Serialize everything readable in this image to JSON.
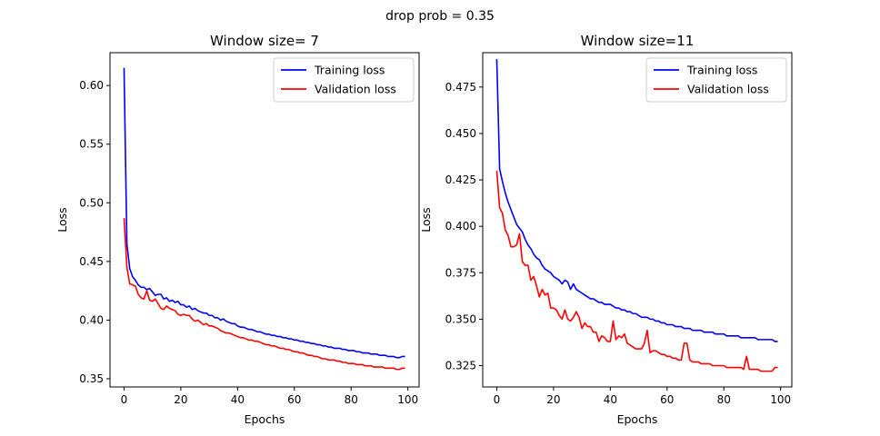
{
  "figure": {
    "suptitle": "drop prob = 0.35"
  },
  "chart_data": [
    {
      "type": "line",
      "title": "Window size= 7",
      "xlabel": "Epochs",
      "ylabel": "Loss",
      "xlim": [
        -4.95,
        103.95
      ],
      "ylim": [
        0.343,
        0.628
      ],
      "xticks": [
        0,
        20,
        40,
        60,
        80,
        100
      ],
      "yticks": [
        0.35,
        0.4,
        0.45,
        0.5,
        0.55,
        0.6
      ],
      "ytick_labels": [
        "0.35",
        "0.40",
        "0.45",
        "0.50",
        "0.55",
        "0.60"
      ],
      "legend_position": "top-right",
      "grid": false,
      "series": [
        {
          "name": "Training loss",
          "color": "#0000ff",
          "values": [
            0.615,
            0.465,
            0.444,
            0.437,
            0.434,
            0.43,
            0.428,
            0.428,
            0.426,
            0.427,
            0.424,
            0.421,
            0.422,
            0.422,
            0.418,
            0.419,
            0.416,
            0.417,
            0.415,
            0.416,
            0.413,
            0.413,
            0.411,
            0.412,
            0.409,
            0.41,
            0.408,
            0.407,
            0.406,
            0.406,
            0.404,
            0.404,
            0.402,
            0.402,
            0.4,
            0.401,
            0.399,
            0.398,
            0.397,
            0.397,
            0.395,
            0.394,
            0.394,
            0.393,
            0.392,
            0.392,
            0.391,
            0.39,
            0.39,
            0.389,
            0.388,
            0.388,
            0.387,
            0.387,
            0.386,
            0.386,
            0.385,
            0.385,
            0.384,
            0.384,
            0.383,
            0.383,
            0.382,
            0.382,
            0.381,
            0.381,
            0.38,
            0.38,
            0.379,
            0.379,
            0.378,
            0.378,
            0.377,
            0.377,
            0.376,
            0.376,
            0.376,
            0.375,
            0.375,
            0.374,
            0.374,
            0.374,
            0.373,
            0.373,
            0.372,
            0.372,
            0.372,
            0.371,
            0.371,
            0.371,
            0.37,
            0.37,
            0.37,
            0.369,
            0.369,
            0.369,
            0.368,
            0.368,
            0.369,
            0.369
          ]
        },
        {
          "name": "Validation loss",
          "color": "#ff0000",
          "values": [
            0.487,
            0.445,
            0.431,
            0.43,
            0.429,
            0.422,
            0.419,
            0.418,
            0.425,
            0.417,
            0.416,
            0.418,
            0.414,
            0.41,
            0.409,
            0.412,
            0.41,
            0.409,
            0.408,
            0.405,
            0.404,
            0.405,
            0.404,
            0.404,
            0.401,
            0.399,
            0.4,
            0.398,
            0.396,
            0.397,
            0.395,
            0.395,
            0.394,
            0.393,
            0.391,
            0.39,
            0.389,
            0.389,
            0.388,
            0.387,
            0.386,
            0.385,
            0.385,
            0.384,
            0.383,
            0.383,
            0.382,
            0.382,
            0.381,
            0.38,
            0.379,
            0.379,
            0.378,
            0.378,
            0.377,
            0.376,
            0.376,
            0.375,
            0.375,
            0.374,
            0.373,
            0.373,
            0.372,
            0.372,
            0.371,
            0.37,
            0.37,
            0.369,
            0.369,
            0.368,
            0.367,
            0.367,
            0.366,
            0.366,
            0.366,
            0.365,
            0.365,
            0.364,
            0.364,
            0.363,
            0.363,
            0.363,
            0.362,
            0.362,
            0.362,
            0.361,
            0.361,
            0.361,
            0.36,
            0.36,
            0.36,
            0.36,
            0.359,
            0.359,
            0.359,
            0.359,
            0.358,
            0.358,
            0.359,
            0.359
          ]
        }
      ]
    },
    {
      "type": "line",
      "title": "Window size=11",
      "xlabel": "Epochs",
      "ylabel": "Loss",
      "xlim": [
        -4.95,
        103.95
      ],
      "ylim": [
        0.3135,
        0.4935
      ],
      "xticks": [
        0,
        20,
        40,
        60,
        80,
        100
      ],
      "yticks": [
        0.325,
        0.35,
        0.375,
        0.4,
        0.425,
        0.45,
        0.475
      ],
      "ytick_labels": [
        "0.325",
        "0.350",
        "0.375",
        "0.400",
        "0.425",
        "0.450",
        "0.475"
      ],
      "legend_position": "top-right",
      "grid": false,
      "series": [
        {
          "name": "Training loss",
          "color": "#0000ff",
          "values": [
            0.49,
            0.431,
            0.424,
            0.418,
            0.413,
            0.409,
            0.405,
            0.401,
            0.399,
            0.397,
            0.393,
            0.39,
            0.388,
            0.385,
            0.383,
            0.382,
            0.379,
            0.377,
            0.376,
            0.375,
            0.373,
            0.372,
            0.371,
            0.369,
            0.371,
            0.37,
            0.366,
            0.369,
            0.366,
            0.365,
            0.364,
            0.363,
            0.362,
            0.361,
            0.361,
            0.36,
            0.359,
            0.359,
            0.358,
            0.358,
            0.358,
            0.357,
            0.356,
            0.356,
            0.355,
            0.355,
            0.354,
            0.354,
            0.353,
            0.353,
            0.352,
            0.351,
            0.351,
            0.351,
            0.35,
            0.35,
            0.349,
            0.349,
            0.348,
            0.348,
            0.347,
            0.347,
            0.347,
            0.346,
            0.346,
            0.346,
            0.345,
            0.345,
            0.345,
            0.344,
            0.344,
            0.344,
            0.344,
            0.343,
            0.343,
            0.343,
            0.343,
            0.342,
            0.342,
            0.342,
            0.342,
            0.341,
            0.341,
            0.341,
            0.341,
            0.341,
            0.34,
            0.34,
            0.34,
            0.34,
            0.34,
            0.34,
            0.339,
            0.339,
            0.339,
            0.339,
            0.339,
            0.339,
            0.338,
            0.338
          ]
        },
        {
          "name": "Validation loss",
          "color": "#ff0000",
          "values": [
            0.43,
            0.41,
            0.407,
            0.398,
            0.395,
            0.389,
            0.389,
            0.39,
            0.396,
            0.381,
            0.379,
            0.379,
            0.371,
            0.373,
            0.368,
            0.362,
            0.366,
            0.363,
            0.364,
            0.356,
            0.356,
            0.355,
            0.352,
            0.35,
            0.355,
            0.35,
            0.349,
            0.351,
            0.354,
            0.351,
            0.345,
            0.348,
            0.346,
            0.346,
            0.343,
            0.343,
            0.338,
            0.341,
            0.34,
            0.338,
            0.338,
            0.349,
            0.339,
            0.341,
            0.34,
            0.342,
            0.337,
            0.336,
            0.335,
            0.334,
            0.334,
            0.334,
            0.337,
            0.344,
            0.332,
            0.333,
            0.333,
            0.332,
            0.331,
            0.331,
            0.33,
            0.33,
            0.329,
            0.329,
            0.328,
            0.328,
            0.337,
            0.337,
            0.328,
            0.327,
            0.327,
            0.327,
            0.326,
            0.326,
            0.326,
            0.326,
            0.325,
            0.325,
            0.325,
            0.325,
            0.325,
            0.324,
            0.324,
            0.324,
            0.324,
            0.324,
            0.324,
            0.323,
            0.33,
            0.323,
            0.323,
            0.323,
            0.323,
            0.322,
            0.322,
            0.322,
            0.322,
            0.322,
            0.324,
            0.324
          ]
        }
      ]
    }
  ]
}
